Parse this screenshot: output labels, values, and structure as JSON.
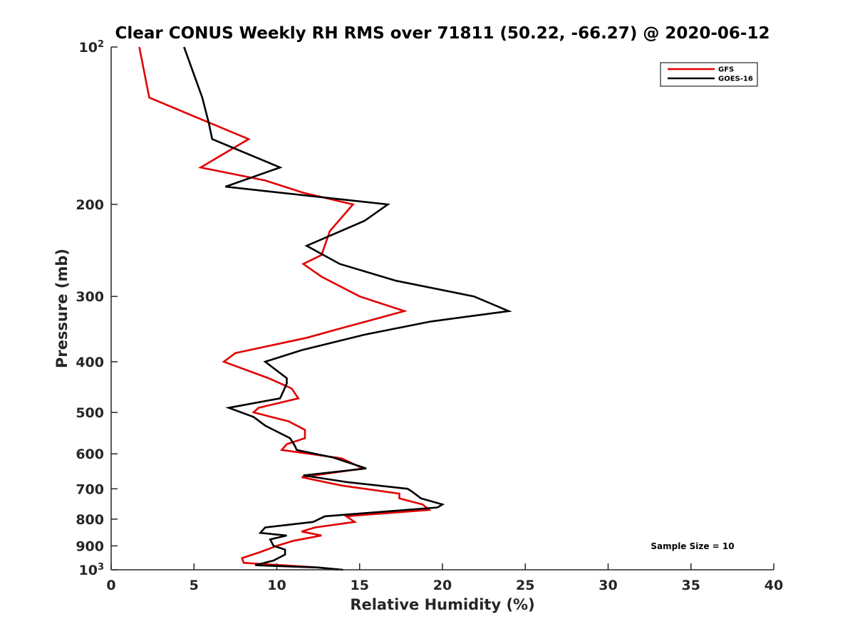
{
  "chart_data": {
    "type": "line",
    "title": "Clear CONUS Weekly RH RMS over 71811 (50.22, -66.27) @ 2020-06-12",
    "xlabel": "Relative Humidity (%)",
    "ylabel": "Pressure (mb)",
    "xlim": [
      0,
      40
    ],
    "ylim": [
      100,
      1000
    ],
    "y_scale": "log",
    "y_reversed": true,
    "x_ticks": [
      "0",
      "5",
      "10",
      "15",
      "20",
      "25",
      "30",
      "35",
      "40"
    ],
    "y_ticks": [
      {
        "value": 100,
        "base": "10",
        "exp": "2"
      },
      {
        "value": 200,
        "label": "200"
      },
      {
        "value": 300,
        "label": "300"
      },
      {
        "value": 400,
        "label": "400"
      },
      {
        "value": 500,
        "label": "500"
      },
      {
        "value": 600,
        "label": "600"
      },
      {
        "value": 700,
        "label": "700"
      },
      {
        "value": 800,
        "label": "800"
      },
      {
        "value": 900,
        "label": "900"
      },
      {
        "value": 1000,
        "base": "10",
        "exp": "3"
      }
    ],
    "grid": false,
    "legend_position": "top-right",
    "series": [
      {
        "name": "GFS",
        "color": "#e00000",
        "points": [
          [
            1.7,
            100
          ],
          [
            2.3,
            125
          ],
          [
            8.3,
            150
          ],
          [
            5.4,
            170
          ],
          [
            9.3,
            180
          ],
          [
            11.6,
            190
          ],
          [
            14.6,
            200
          ],
          [
            13.2,
            225
          ],
          [
            12.7,
            250
          ],
          [
            11.6,
            260
          ],
          [
            12.7,
            275
          ],
          [
            15.0,
            300
          ],
          [
            17.7,
            320
          ],
          [
            13.9,
            345
          ],
          [
            11.8,
            360
          ],
          [
            7.5,
            385
          ],
          [
            6.8,
            400
          ],
          [
            9.5,
            430
          ],
          [
            10.9,
            450
          ],
          [
            11.3,
            470
          ],
          [
            8.9,
            490
          ],
          [
            8.6,
            500
          ],
          [
            10.7,
            520
          ],
          [
            11.7,
            540
          ],
          [
            11.7,
            560
          ],
          [
            10.6,
            575
          ],
          [
            10.3,
            590
          ],
          [
            13.9,
            612
          ],
          [
            15.2,
            640
          ],
          [
            11.5,
            665
          ],
          [
            13.9,
            690
          ],
          [
            17.4,
            715
          ],
          [
            17.4,
            730
          ],
          [
            18.8,
            750
          ],
          [
            19.2,
            768
          ],
          [
            14.2,
            790
          ],
          [
            14.7,
            810
          ],
          [
            12.3,
            830
          ],
          [
            11.5,
            845
          ],
          [
            12.7,
            860
          ],
          [
            11.0,
            880
          ],
          [
            10.0,
            900
          ],
          [
            9.0,
            925
          ],
          [
            7.9,
            950
          ],
          [
            8.0,
            970
          ],
          [
            12.5,
            990
          ],
          [
            13.7,
            1000
          ]
        ]
      },
      {
        "name": "GOES-16",
        "color": "#000000",
        "points": [
          [
            4.4,
            100
          ],
          [
            5.5,
            125
          ],
          [
            5.9,
            140
          ],
          [
            6.1,
            150
          ],
          [
            10.2,
            170
          ],
          [
            6.9,
            185
          ],
          [
            16.7,
            200
          ],
          [
            15.3,
            215
          ],
          [
            11.8,
            240
          ],
          [
            13.8,
            260
          ],
          [
            17.2,
            280
          ],
          [
            21.9,
            300
          ],
          [
            24.0,
            320
          ],
          [
            19.3,
            335
          ],
          [
            15.3,
            355
          ],
          [
            11.5,
            380
          ],
          [
            9.3,
            400
          ],
          [
            10.6,
            430
          ],
          [
            10.6,
            440
          ],
          [
            10.4,
            455
          ],
          [
            10.2,
            470
          ],
          [
            7.1,
            490
          ],
          [
            8.6,
            510
          ],
          [
            9.3,
            530
          ],
          [
            10.8,
            560
          ],
          [
            11.1,
            580
          ],
          [
            11.2,
            590
          ],
          [
            13.4,
            610
          ],
          [
            15.4,
            640
          ],
          [
            11.6,
            660
          ],
          [
            14.3,
            680
          ],
          [
            17.9,
            700
          ],
          [
            18.2,
            710
          ],
          [
            18.7,
            730
          ],
          [
            20.0,
            750
          ],
          [
            19.7,
            760
          ],
          [
            12.9,
            790
          ],
          [
            12.2,
            810
          ],
          [
            9.3,
            830
          ],
          [
            9.0,
            850
          ],
          [
            10.6,
            860
          ],
          [
            9.6,
            875
          ],
          [
            9.8,
            900
          ],
          [
            10.5,
            915
          ],
          [
            10.5,
            935
          ],
          [
            9.8,
            960
          ],
          [
            8.7,
            980
          ],
          [
            12.5,
            990
          ],
          [
            14.0,
            1000
          ]
        ]
      }
    ],
    "annotation": "Sample Size = 10"
  }
}
